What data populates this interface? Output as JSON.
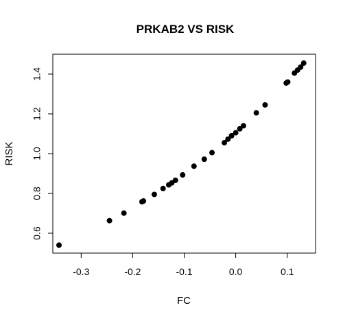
{
  "chart_data": {
    "type": "scatter",
    "title": "PRKAB2 VS RISK",
    "xlabel": "FC",
    "ylabel": "RISK",
    "xlim": [
      -0.355,
      0.155
    ],
    "ylim": [
      0.5,
      1.5
    ],
    "x_ticks": [
      -0.3,
      -0.2,
      -0.1,
      0.0,
      0.1
    ],
    "x_tick_labels": [
      "-0.3",
      "-0.2",
      "-0.1",
      "0.0",
      "0.1"
    ],
    "y_ticks": [
      0.6,
      0.8,
      1.0,
      1.2,
      1.4
    ],
    "y_tick_labels": [
      "0.6",
      "0.8",
      "1.0",
      "1.2",
      "1.4"
    ],
    "grid": false,
    "marker_color": "#000000",
    "points": [
      {
        "x": -0.343,
        "y": 0.54
      },
      {
        "x": -0.245,
        "y": 0.663
      },
      {
        "x": -0.217,
        "y": 0.701
      },
      {
        "x": -0.182,
        "y": 0.758
      },
      {
        "x": -0.179,
        "y": 0.762
      },
      {
        "x": -0.158,
        "y": 0.795
      },
      {
        "x": -0.141,
        "y": 0.825
      },
      {
        "x": -0.13,
        "y": 0.843
      },
      {
        "x": -0.124,
        "y": 0.853
      },
      {
        "x": -0.117,
        "y": 0.866
      },
      {
        "x": -0.103,
        "y": 0.893
      },
      {
        "x": -0.081,
        "y": 0.937
      },
      {
        "x": -0.061,
        "y": 0.972
      },
      {
        "x": -0.046,
        "y": 1.005
      },
      {
        "x": -0.022,
        "y": 1.055
      },
      {
        "x": -0.015,
        "y": 1.073
      },
      {
        "x": -0.008,
        "y": 1.09
      },
      {
        "x": 0.0,
        "y": 1.105
      },
      {
        "x": 0.008,
        "y": 1.125
      },
      {
        "x": 0.015,
        "y": 1.14
      },
      {
        "x": 0.04,
        "y": 1.205
      },
      {
        "x": 0.057,
        "y": 1.245
      },
      {
        "x": 0.098,
        "y": 1.355
      },
      {
        "x": 0.101,
        "y": 1.36
      },
      {
        "x": 0.114,
        "y": 1.405
      },
      {
        "x": 0.12,
        "y": 1.42
      },
      {
        "x": 0.126,
        "y": 1.435
      },
      {
        "x": 0.132,
        "y": 1.455
      }
    ]
  }
}
